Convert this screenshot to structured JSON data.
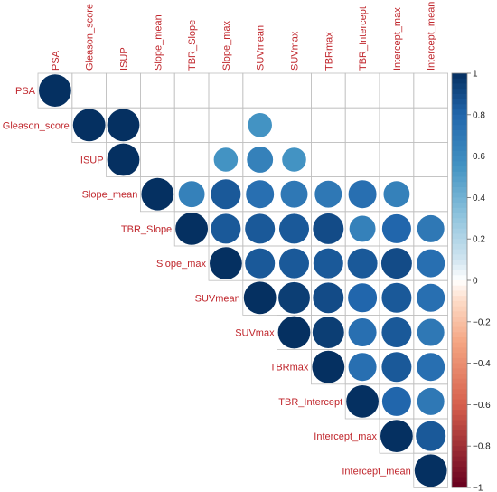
{
  "chart_data": {
    "type": "heatmap",
    "variables": [
      "PSA",
      "Gleason_score",
      "ISUP",
      "Slope_mean",
      "TBR_Slope",
      "Slope_max",
      "SUVmean",
      "SUVmax",
      "TBRmax",
      "TBR_Intercept",
      "Intercept_max",
      "Intercept_mean"
    ],
    "matrix": [
      [
        1,
        null,
        null,
        null,
        null,
        null,
        null,
        null,
        null,
        null,
        null,
        null
      ],
      [
        null,
        1,
        1,
        null,
        null,
        null,
        0.55,
        null,
        null,
        null,
        null,
        null
      ],
      [
        null,
        null,
        1,
        null,
        null,
        0.55,
        0.65,
        0.55,
        null,
        null,
        null,
        null
      ],
      [
        null,
        null,
        null,
        1,
        0.65,
        0.85,
        0.75,
        0.7,
        0.7,
        0.75,
        0.65,
        null
      ],
      [
        null,
        null,
        null,
        null,
        1,
        0.85,
        0.85,
        0.85,
        0.9,
        0.65,
        0.8,
        0.7
      ],
      [
        null,
        null,
        null,
        null,
        null,
        1,
        0.85,
        0.85,
        0.85,
        0.85,
        0.9,
        0.75
      ],
      [
        null,
        null,
        null,
        null,
        null,
        null,
        1,
        0.95,
        0.9,
        0.8,
        0.85,
        0.75
      ],
      [
        null,
        null,
        null,
        null,
        null,
        null,
        null,
        1,
        0.95,
        0.75,
        0.85,
        0.7
      ],
      [
        null,
        null,
        null,
        null,
        null,
        null,
        null,
        null,
        1,
        0.75,
        0.85,
        0.75
      ],
      [
        null,
        null,
        null,
        null,
        null,
        null,
        null,
        null,
        null,
        1,
        0.8,
        0.7
      ],
      [
        null,
        null,
        null,
        null,
        null,
        null,
        null,
        null,
        null,
        null,
        1,
        0.85
      ],
      [
        null,
        null,
        null,
        null,
        null,
        null,
        null,
        null,
        null,
        null,
        null,
        1
      ]
    ],
    "colorbar": {
      "ticks": [
        "1",
        "0.8",
        "0.6",
        "0.4",
        "0.2",
        "0",
        "−0.2",
        "−0.4",
        "−0.6",
        "−0.8",
        "−1"
      ],
      "range": [
        -1,
        1
      ],
      "negative_color": "#67001F",
      "neutral_color": "#FFFFFF",
      "positive_color": "#053061"
    },
    "grid": true,
    "label_color": "#C0272D",
    "grid_color": "#BFBFBF"
  }
}
